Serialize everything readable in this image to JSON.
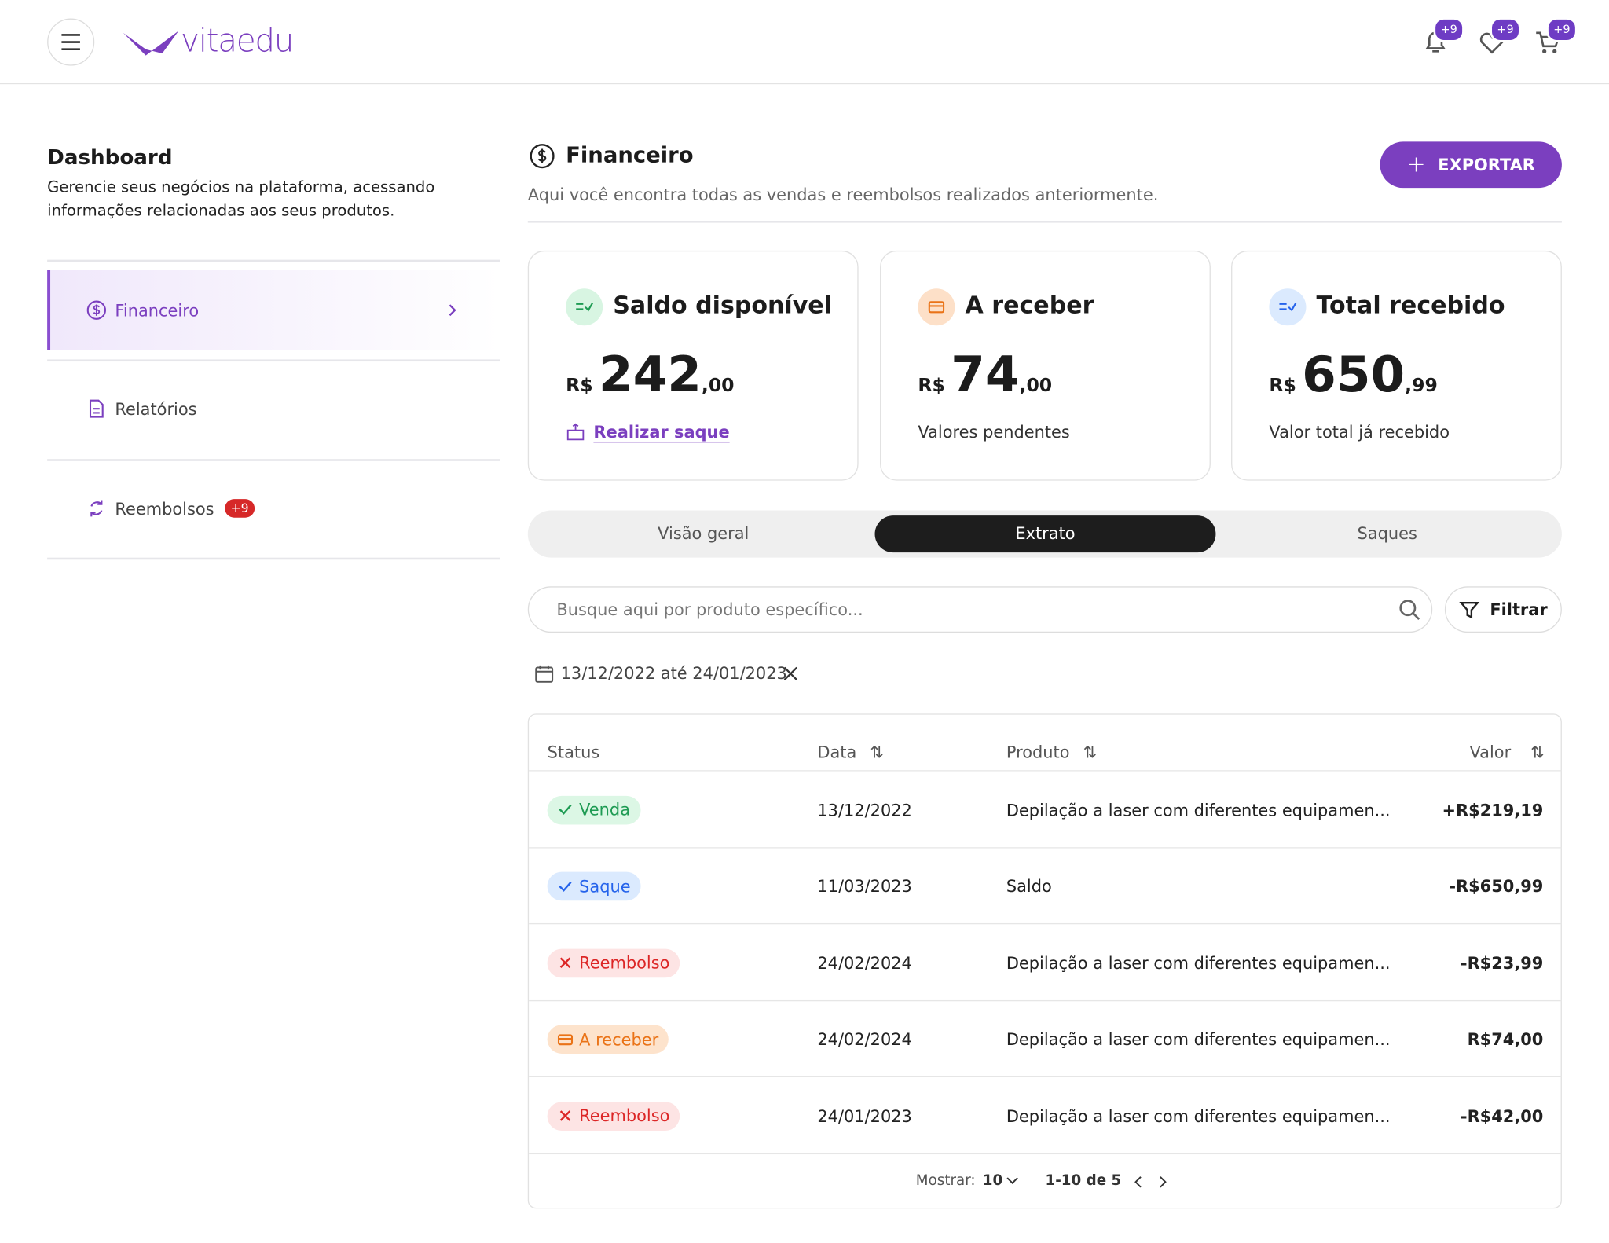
{
  "header": {
    "logo": "vitaedu",
    "badges": [
      "+9",
      "+9",
      "+9"
    ]
  },
  "sidebar": {
    "title": "Dashboard",
    "description": "Gerencie seus negócios na plataforma, acessando informações relacionadas aos seus produtos.",
    "nav": [
      {
        "label": "Financeiro"
      },
      {
        "label": "Relatórios"
      },
      {
        "label": "Reembolsos",
        "badge": "+9"
      }
    ]
  },
  "main": {
    "title": "Financeiro",
    "subtitle": "Aqui você encontra todas as vendas e reembolsos realizados anteriormente.",
    "export_button": "EXPORTAR",
    "cards": [
      {
        "title": "Saldo disponível",
        "currency": "R$",
        "amount": "242",
        "cents": ",00",
        "footer": "Realizar saque"
      },
      {
        "title": "A receber",
        "currency": "R$",
        "amount": "74",
        "cents": ",00",
        "footer": "Valores pendentes"
      },
      {
        "title": "Total recebido",
        "currency": "R$",
        "amount": "650",
        "cents": ",99",
        "footer": "Valor total já recebido"
      }
    ],
    "tabs": [
      "Visão geral",
      "Extrato",
      "Saques"
    ],
    "search_placeholder": "Busque aqui por produto específico...",
    "filter_button": "Filtrar",
    "date_range": "13/12/2022 até 24/01/2023",
    "table": {
      "headers": [
        "Status",
        "Data",
        "Produto",
        "Valor"
      ],
      "rows": [
        [
          "Venda",
          "13/12/2022",
          "Depilação a laser com diferentes equipamen...",
          "+R$219,19"
        ],
        [
          "Saque",
          "11/03/2023",
          "Saldo",
          "-R$650,99"
        ],
        [
          "Reembolso",
          "24/02/2024",
          "Depilação a laser com diferentes equipamen...",
          "-R$23,99"
        ],
        [
          "A receber",
          "24/02/2024",
          "Depilação a laser com diferentes equipamen...",
          "R$74,00"
        ],
        [
          "Reembolso",
          "24/01/2023",
          "Depilação a laser com diferentes equipamen...",
          "-R$42,00"
        ]
      ]
    },
    "pagination": {
      "show_label": "Mostrar:",
      "page_size": "10",
      "range": "1-10 de 5"
    }
  }
}
